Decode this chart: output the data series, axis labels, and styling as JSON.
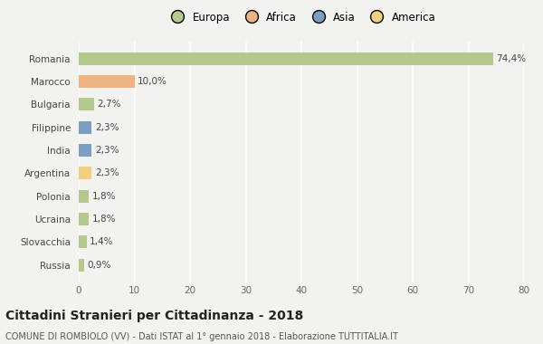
{
  "countries": [
    "Romania",
    "Marocco",
    "Bulgaria",
    "Filippine",
    "India",
    "Argentina",
    "Polonia",
    "Ucraina",
    "Slovacchia",
    "Russia"
  ],
  "values": [
    74.4,
    10.0,
    2.7,
    2.3,
    2.3,
    2.3,
    1.8,
    1.8,
    1.4,
    0.9
  ],
  "labels": [
    "74,4%",
    "10,0%",
    "2,7%",
    "2,3%",
    "2,3%",
    "2,3%",
    "1,8%",
    "1,8%",
    "1,4%",
    "0,9%"
  ],
  "colors": [
    "#b5c98e",
    "#f0b482",
    "#b5c98e",
    "#7b9ec2",
    "#7b9ec2",
    "#f0d080",
    "#b5c98e",
    "#b5c98e",
    "#b5c98e",
    "#b5c98e"
  ],
  "legend_labels": [
    "Europa",
    "Africa",
    "Asia",
    "America"
  ],
  "legend_colors": [
    "#b5c98e",
    "#f0b482",
    "#7b9ec2",
    "#f0d080"
  ],
  "title": "Cittadini Stranieri per Cittadinanza - 2018",
  "subtitle": "COMUNE DI ROMBIOLO (VV) - Dati ISTAT al 1° gennaio 2018 - Elaborazione TUTTITALIA.IT",
  "xlim": [
    0,
    80
  ],
  "xticks": [
    0,
    10,
    20,
    30,
    40,
    50,
    60,
    70,
    80
  ],
  "background_color": "#f2f2ee",
  "grid_color": "#ffffff",
  "bar_height": 0.55
}
